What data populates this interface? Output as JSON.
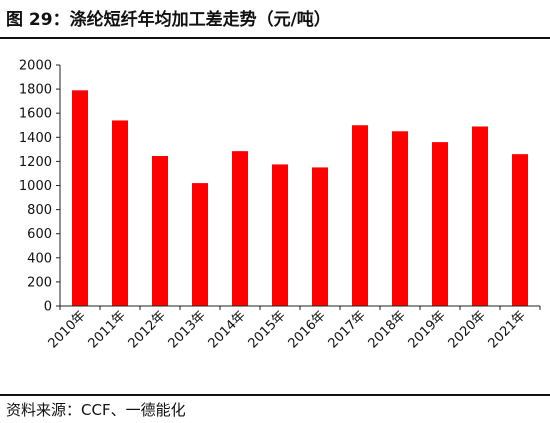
{
  "header": {
    "title": "图 29：涤纶短纤年均加工差走势（元/吨）"
  },
  "footer": {
    "source": "资料来源：CCF、一德能化"
  },
  "chart_data": {
    "type": "bar",
    "title": "",
    "xlabel": "",
    "ylabel": "",
    "ylim": [
      0,
      2000
    ],
    "yticks": [
      0,
      200,
      400,
      600,
      800,
      1000,
      1200,
      1400,
      1600,
      1800,
      2000
    ],
    "grid": false,
    "legend": "none",
    "bar_color": "#ff0000",
    "categories": [
      "2010年",
      "2011年",
      "2012年",
      "2013年",
      "2014年",
      "2015年",
      "2016年",
      "2017年",
      "2018年",
      "2019年",
      "2020年",
      "2021年"
    ],
    "values": [
      1790,
      1540,
      1245,
      1020,
      1285,
      1175,
      1150,
      1500,
      1450,
      1360,
      1490,
      1260
    ]
  }
}
